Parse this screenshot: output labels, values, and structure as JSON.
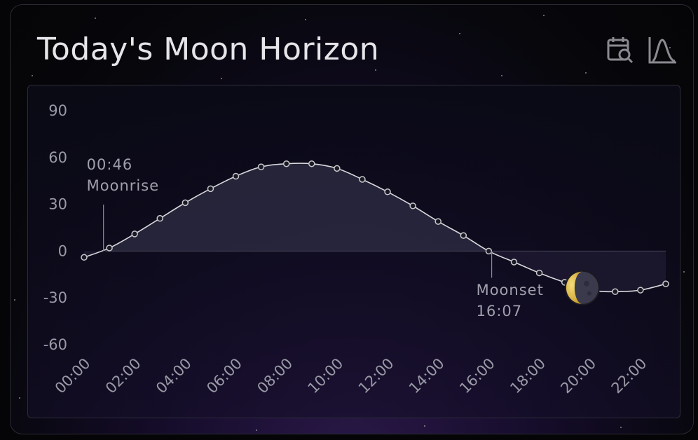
{
  "card": {
    "title": "Today's Moon Horizon",
    "icons": [
      "calendar-search-icon",
      "chart-curve-icon"
    ]
  },
  "chart_data": {
    "type": "line",
    "title": "",
    "xlabel": "",
    "ylabel": "",
    "x": [
      "00:00",
      "01:00",
      "02:00",
      "03:00",
      "04:00",
      "05:00",
      "06:00",
      "07:00",
      "08:00",
      "09:00",
      "10:00",
      "11:00",
      "12:00",
      "13:00",
      "14:00",
      "15:00",
      "16:00",
      "17:00",
      "18:00",
      "19:00",
      "20:00",
      "21:00",
      "22:00",
      "23:00"
    ],
    "y": [
      -4,
      2,
      11,
      21,
      31,
      40,
      48,
      54,
      56,
      56,
      53,
      46,
      38,
      29,
      19,
      10,
      0,
      -7,
      -14,
      -20,
      -25,
      -26,
      -25,
      -21
    ],
    "ylim": [
      -60,
      90
    ],
    "yticks": [
      "90",
      "60",
      "30",
      "0",
      "-30",
      "-60"
    ],
    "xticks": [
      "00:00",
      "02:00",
      "04:00",
      "06:00",
      "08:00",
      "10:00",
      "12:00",
      "14:00",
      "16:00",
      "18:00",
      "20:00",
      "22:00"
    ],
    "moon_position_x": "19:42",
    "annotations": {
      "moonrise": {
        "time": "00:46",
        "label": "Moonrise"
      },
      "moonset": {
        "time": "16:07",
        "label": "Moonset"
      }
    },
    "colors": {
      "line": "#d8d8dc",
      "fill_above": "#3a3a52",
      "moon_lit": "#e8c04a",
      "moon_dark": "#3a3a4c"
    }
  }
}
